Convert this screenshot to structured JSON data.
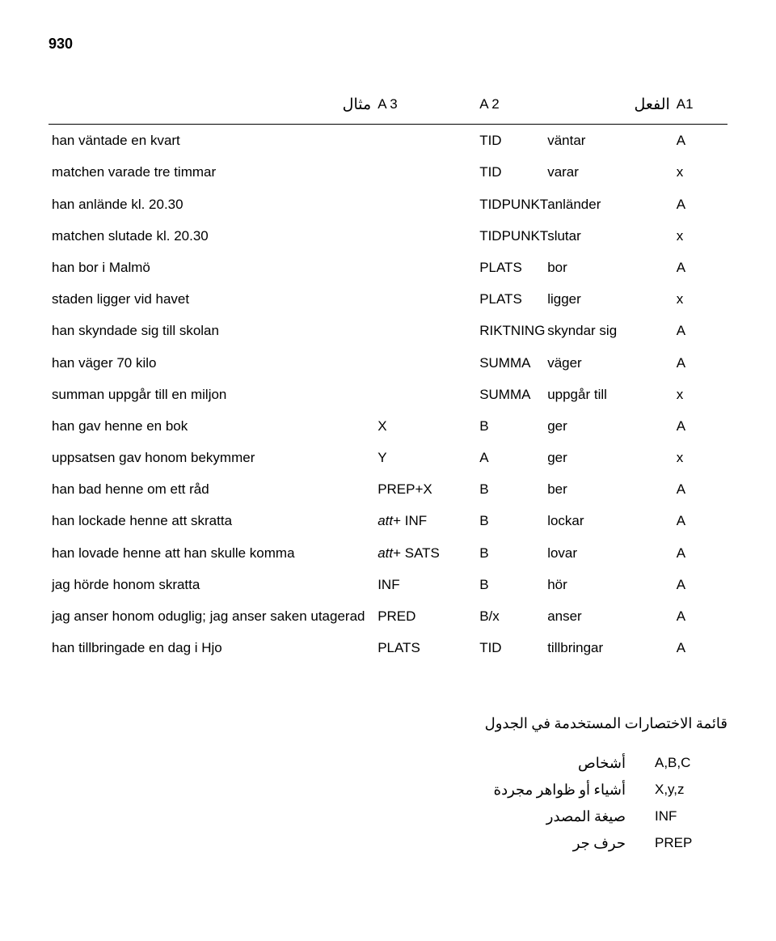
{
  "page_number": "930",
  "headers": {
    "ex": "مثال",
    "a3": "A 3",
    "a2": "A 2",
    "verb": "الفعل",
    "a1": "A1"
  },
  "rows": [
    {
      "ex": "han väntade en kvart",
      "a3": "",
      "a2": "TID",
      "verb": "väntar",
      "a1": "A"
    },
    {
      "ex": "matchen varade tre timmar",
      "a3": "",
      "a2": "TID",
      "verb": "varar",
      "a1": "x"
    },
    {
      "ex": "han anlände kl. 20.30",
      "a3": "",
      "a2": "TIDPUNKT",
      "verb": "anländer",
      "a1": "A"
    },
    {
      "ex": "matchen slutade kl. 20.30",
      "a3": "",
      "a2": "TIDPUNKT",
      "verb": "slutar",
      "a1": "x"
    },
    {
      "ex": "han bor i Malmö",
      "a3": "",
      "a2": "PLATS",
      "verb": "bor",
      "a1": "A"
    },
    {
      "ex": "staden ligger vid havet",
      "a3": "",
      "a2": "PLATS",
      "verb": "ligger",
      "a1": "x"
    },
    {
      "ex": "han skyndade sig till skolan",
      "a3": "",
      "a2": "RIKTNING",
      "verb": "skyndar sig",
      "a1": "A"
    },
    {
      "ex": "han väger 70 kilo",
      "a3": "",
      "a2": "SUMMA",
      "verb": "väger",
      "a1": "A"
    },
    {
      "ex": "summan uppgår till en miljon",
      "a3": "",
      "a2": "SUMMA",
      "verb": "uppgår till",
      "a1": "x"
    },
    {
      "ex": "han gav henne en bok",
      "a3": "X",
      "a2": "B",
      "verb": "ger",
      "a1": "A"
    },
    {
      "ex": "uppsatsen gav honom bekymmer",
      "a3": "Y",
      "a2": "A",
      "verb": "ger",
      "a1": "x"
    },
    {
      "ex": "han bad henne om ett råd",
      "a3": "PREP+X",
      "a2": "B",
      "verb": "ber",
      "a1": "A"
    },
    {
      "ex": "han lockade henne att skratta",
      "a3": "att+ INF",
      "a2": "B",
      "verb": "lockar",
      "a1": "A",
      "a3_italic_prefix": "att"
    },
    {
      "ex": "han lovade henne att han skulle komma",
      "a3": "att+ SATS",
      "a2": "B",
      "verb": "lovar",
      "a1": "A",
      "a3_italic_prefix": "att"
    },
    {
      "ex": "jag hörde honom skratta",
      "a3": "INF",
      "a2": "B",
      "verb": "hör",
      "a1": "A"
    },
    {
      "ex": "jag anser honom oduglig; jag anser saken utagerad",
      "a3": "PRED",
      "a2": "B/x",
      "verb": "anser",
      "a1": "A"
    },
    {
      "ex": "han tillbringade en dag i Hjo",
      "a3": "PLATS",
      "a2": "TID",
      "verb": "tillbringar",
      "a1": "A"
    }
  ],
  "legend_title": "قائمة الاختصارات المستخدمة في الجدول",
  "legend": [
    {
      "ar": "أشخاص",
      "val": "A,B,C"
    },
    {
      "ar": "أشياء أو ظواهر مجردة",
      "val": "X,y,z"
    },
    {
      "ar": "صيغة المصدر",
      "val": "INF"
    },
    {
      "ar": "حرف جر",
      "val": "PREP"
    }
  ]
}
